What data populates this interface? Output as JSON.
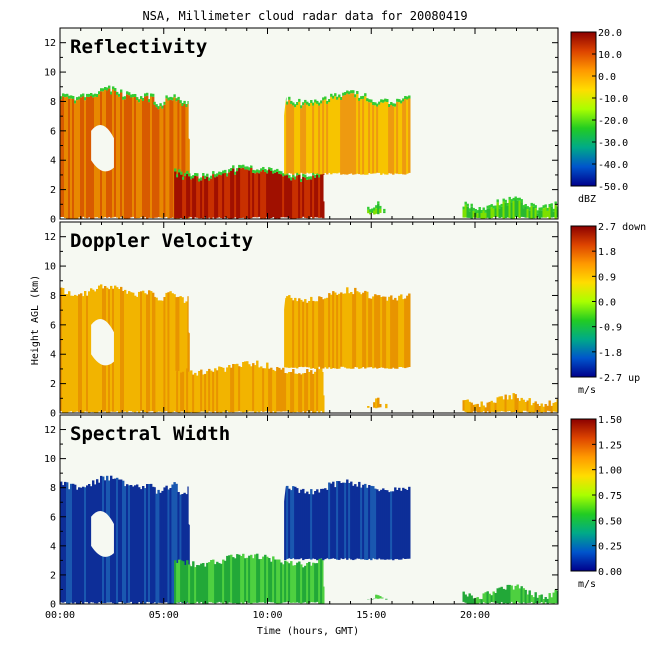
{
  "title": "NSA, Millimeter cloud radar data for 20080419",
  "xlabel": "Time (hours, GMT)",
  "ylabel": "Height AGL (km)",
  "colors": {
    "frame": "#000000",
    "background": "#f6f9f2"
  },
  "chart_data": [
    {
      "type": "heatmap",
      "title": "Reflectivity",
      "x_range_hours": [
        0,
        24
      ],
      "x_ticks": [
        "00:00",
        "05:00",
        "10:00",
        "15:00",
        "20:00"
      ],
      "y_range_km": [
        0,
        13
      ],
      "y_ticks": [
        "0",
        "2",
        "4",
        "6",
        "8",
        "10",
        "12"
      ],
      "colorbar": {
        "labels": [
          "20.0",
          "10.0",
          "0.0",
          "-10.0",
          "-20.0",
          "-30.0",
          "-40.0",
          "-50.0"
        ],
        "unit": "dBZ",
        "range": [
          -50,
          20
        ],
        "colors": [
          "#00008b",
          "#0055cc",
          "#00aa88",
          "#22cc22",
          "#aaff00",
          "#ffdd00",
          "#ff9900",
          "#dd4400",
          "#8b0000"
        ]
      },
      "cloud_regions": [
        {
          "t": [
            0.0,
            4.5
          ],
          "h": [
            0.0,
            8.8
          ],
          "level": "high"
        },
        {
          "t": [
            4.5,
            6.2
          ],
          "h": [
            0.0,
            8.4
          ],
          "level": "high"
        },
        {
          "t": [
            5.5,
            12.7
          ],
          "h": [
            0.0,
            3.5
          ],
          "level": "very-high"
        },
        {
          "t": [
            10.8,
            16.8
          ],
          "h": [
            3.0,
            8.5
          ],
          "level": "mid"
        },
        {
          "t": [
            14.8,
            15.7
          ],
          "h": [
            0.3,
            1.0
          ],
          "level": "low"
        },
        {
          "t": [
            19.4,
            24.0
          ],
          "h": [
            0.0,
            1.3
          ],
          "level": "low"
        }
      ]
    },
    {
      "type": "heatmap",
      "title": "Doppler Velocity",
      "x_range_hours": [
        0,
        24
      ],
      "x_ticks": [
        "00:00",
        "05:00",
        "10:00",
        "15:00",
        "20:00"
      ],
      "y_range_km": [
        0,
        13
      ],
      "y_ticks": [
        "0",
        "2",
        "4",
        "6",
        "8",
        "10",
        "12"
      ],
      "colorbar": {
        "labels": [
          "2.7 down",
          "1.8",
          "0.9",
          "0.0",
          "-0.9",
          "-1.8",
          "-2.7 up"
        ],
        "unit": "m/s",
        "range": [
          -2.7,
          2.7
        ],
        "colors": [
          "#00008b",
          "#0055cc",
          "#00aa88",
          "#22cc22",
          "#aaff00",
          "#ffdd00",
          "#ff9900",
          "#dd4400",
          "#8b0000"
        ]
      }
    },
    {
      "type": "heatmap",
      "title": "Spectral Width",
      "x_range_hours": [
        0,
        24
      ],
      "x_ticks": [
        "00:00",
        "05:00",
        "10:00",
        "15:00",
        "20:00"
      ],
      "y_range_km": [
        0,
        13
      ],
      "y_ticks": [
        "0",
        "2",
        "4",
        "6",
        "8",
        "10",
        "12"
      ],
      "colorbar": {
        "labels": [
          "1.50",
          "1.25",
          "1.00",
          "0.75",
          "0.50",
          "0.25",
          "0.00"
        ],
        "unit": "m/s",
        "range": [
          0,
          1.5
        ],
        "colors": [
          "#00008b",
          "#0055cc",
          "#00aa88",
          "#22cc22",
          "#aaff00",
          "#ffdd00",
          "#ff9900",
          "#dd4400",
          "#8b0000"
        ]
      }
    }
  ]
}
